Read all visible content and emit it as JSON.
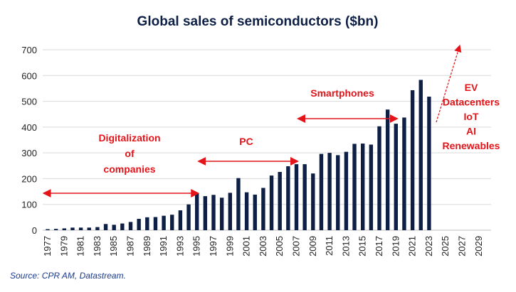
{
  "chart_data": {
    "type": "bar",
    "title": "Global sales of semiconductors ($bn)",
    "xlabel": "",
    "ylabel": "",
    "ylim": [
      0,
      700
    ],
    "yticks": [
      0,
      100,
      200,
      300,
      400,
      500,
      600,
      700
    ],
    "grid": true,
    "bar_color": "#0d1f45",
    "annotation_color": "#e3151a",
    "x_tick_labels": [
      "1977",
      "1979",
      "1981",
      "1983",
      "1985",
      "1987",
      "1989",
      "1991",
      "1993",
      "1995",
      "1997",
      "1999",
      "2001",
      "2003",
      "2005",
      "2007",
      "2009",
      "2011",
      "2013",
      "2015",
      "2017",
      "2019",
      "2021",
      "2023",
      "2025",
      "2027",
      "2029"
    ],
    "categories": [
      1977,
      1978,
      1979,
      1980,
      1981,
      1982,
      1983,
      1984,
      1985,
      1986,
      1987,
      1988,
      1989,
      1990,
      1991,
      1992,
      1993,
      1994,
      1995,
      1996,
      1997,
      1998,
      1999,
      2000,
      2001,
      2002,
      2003,
      2004,
      2005,
      2006,
      2007,
      2008,
      2009,
      2010,
      2011,
      2012,
      2013,
      2014,
      2015,
      2016,
      2017,
      2018,
      2019,
      2020,
      2021,
      2022,
      2023
    ],
    "values": [
      4,
      5,
      7,
      10,
      10,
      10,
      12,
      24,
      21,
      26,
      32,
      44,
      50,
      51,
      56,
      60,
      77,
      100,
      142,
      132,
      137,
      126,
      145,
      202,
      147,
      138,
      164,
      212,
      226,
      248,
      256,
      256,
      220,
      296,
      300,
      291,
      304,
      335,
      336,
      332,
      403,
      468,
      413,
      437,
      543,
      583,
      518
    ],
    "annotations": [
      {
        "text": [
          "Digitalization",
          "of",
          "companies"
        ],
        "from_year": 1976.5,
        "to_year": 1995
      },
      {
        "text": [
          "PC"
        ],
        "from_year": 1995,
        "to_year": 2007
      },
      {
        "text": [
          "Smartphones"
        ],
        "from_year": 2007,
        "to_year": 2019
      },
      {
        "text": [
          "EV",
          "Datacenters",
          "IoT",
          "AI",
          "Renewables"
        ]
      }
    ],
    "source": "Source: CPR AM, Datastream."
  }
}
